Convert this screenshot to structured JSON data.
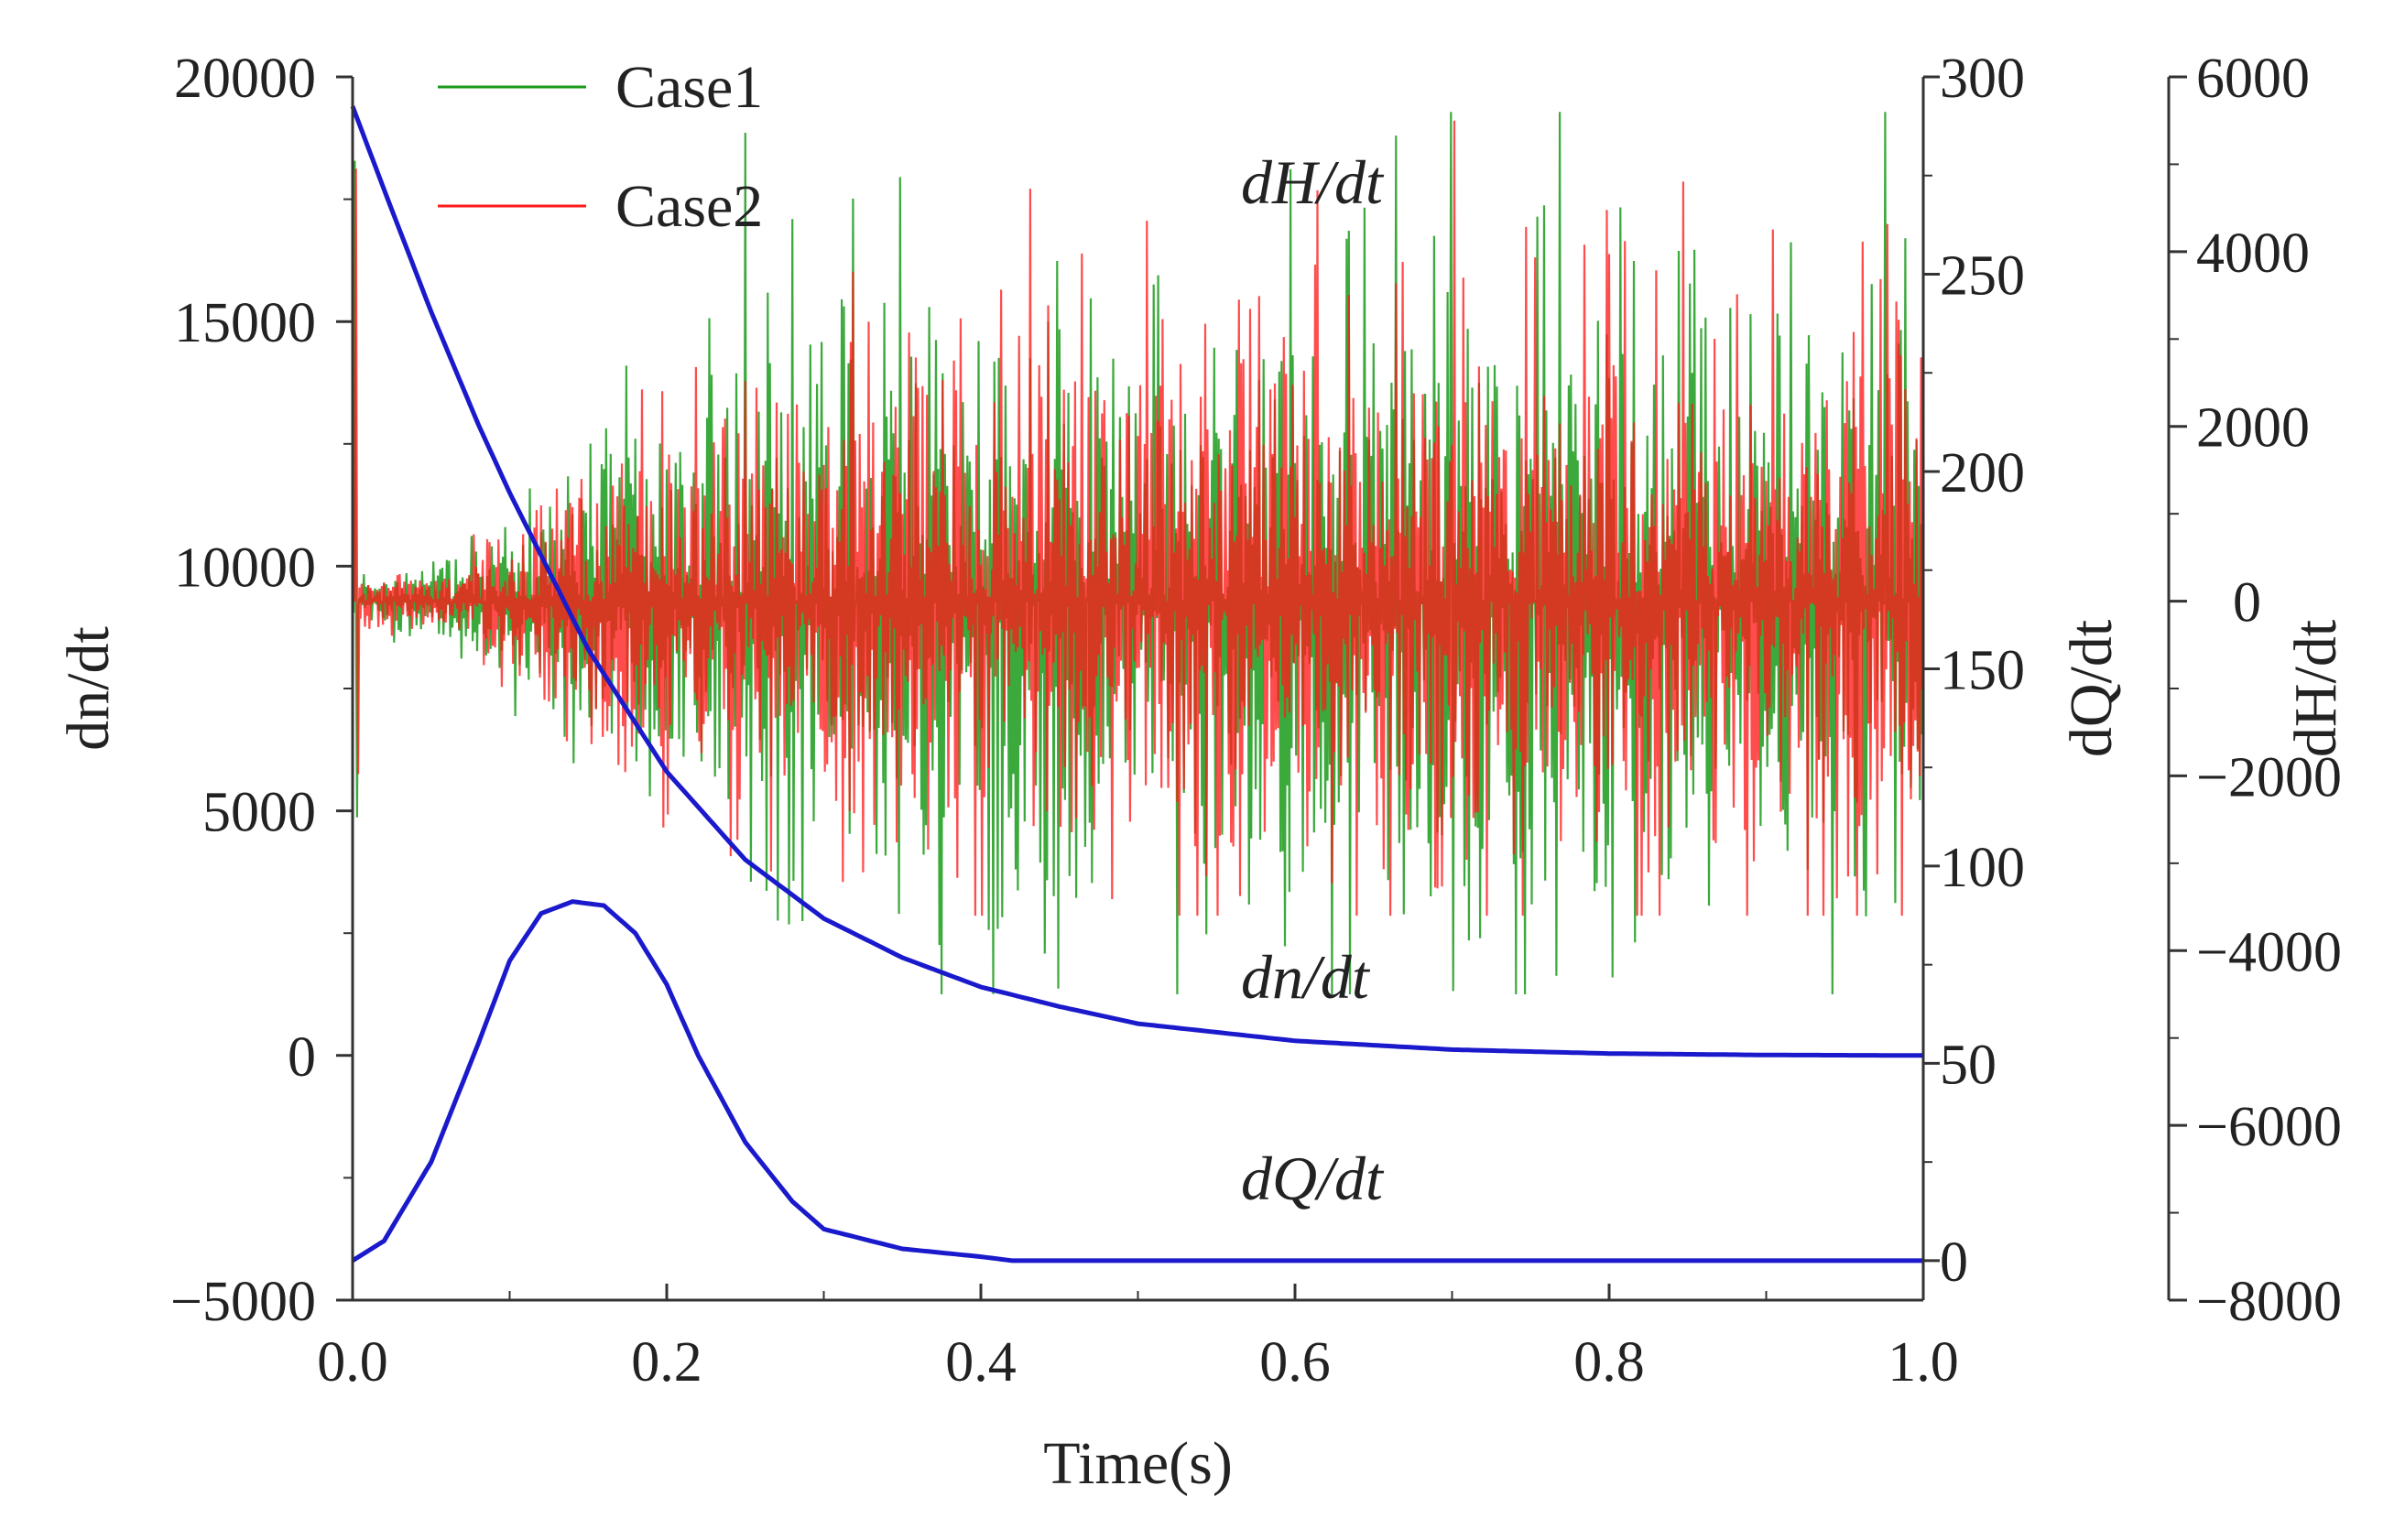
{
  "chart_data": {
    "type": "line",
    "x": {
      "label": "Time(s)",
      "range": [
        0,
        1.0
      ],
      "ticks": [
        "0.0",
        "0.2",
        "0.4",
        "0.6",
        "0.8",
        "1.0"
      ]
    },
    "axes": {
      "dn_dt": {
        "label": "dn/dt",
        "side": "left",
        "range": [
          -5000,
          20000
        ],
        "ticks": [
          "-5000",
          "0",
          "5000",
          "10000",
          "15000",
          "20000"
        ]
      },
      "dQ_dt": {
        "label": "dQ/dt",
        "side": "right",
        "range": [
          -10,
          300
        ],
        "ticks": [
          "0",
          "50",
          "100",
          "150",
          "200",
          "250",
          "300"
        ]
      },
      "dH_dt": {
        "label": "dH/dt",
        "side": "far-right",
        "range": [
          -8000,
          6000
        ],
        "ticks": [
          "-8000",
          "-6000",
          "-4000",
          "-2000",
          "0",
          "2000",
          "4000",
          "6000"
        ]
      }
    },
    "series": [
      {
        "name": "dn/dt",
        "axis": "dn_dt",
        "color": "#1a1acc",
        "annotation": "dn/dt",
        "x": [
          0,
          0.02,
          0.05,
          0.08,
          0.1,
          0.15,
          0.2,
          0.25,
          0.3,
          0.35,
          0.4,
          0.45,
          0.5,
          0.6,
          0.7,
          0.8,
          0.9,
          1.0
        ],
        "values": [
          19400,
          17700,
          15200,
          12900,
          11500,
          8300,
          5800,
          4000,
          2800,
          2000,
          1400,
          1000,
          650,
          300,
          120,
          40,
          10,
          0
        ]
      },
      {
        "name": "dQ/dt",
        "axis": "dQ_dt",
        "color": "#1a1acc",
        "annotation": "dQ/dt",
        "x": [
          0,
          0.02,
          0.05,
          0.08,
          0.1,
          0.12,
          0.14,
          0.16,
          0.18,
          0.2,
          0.22,
          0.25,
          0.28,
          0.3,
          0.35,
          0.4,
          0.42,
          0.5,
          0.6,
          0.8,
          1.0
        ],
        "values": [
          0,
          5,
          25,
          55,
          76,
          88,
          91,
          90,
          83,
          70,
          52,
          30,
          15,
          8,
          3,
          1,
          0,
          0,
          0,
          0,
          0
        ]
      },
      {
        "name": "Case1",
        "axis": "dH_dt",
        "color": "#1a9a1a",
        "annotation": "dH/dt",
        "kind": "oscillation",
        "x": [
          0,
          0.05,
          0.1,
          0.15,
          0.2,
          0.3,
          0.4,
          0.5,
          0.6,
          0.7,
          0.8,
          0.9,
          1.0
        ],
        "amplitude": [
          250,
          400,
          900,
          1700,
          2600,
          3000,
          3100,
          3200,
          3400,
          3400,
          3500,
          3500,
          3500
        ],
        "center": 0,
        "peak_max": 5600,
        "peak_min": -4500
      },
      {
        "name": "Case2",
        "axis": "dH_dt",
        "color": "#ff1a1a",
        "annotation": "",
        "kind": "oscillation",
        "x": [
          0,
          0.05,
          0.1,
          0.15,
          0.2,
          0.3,
          0.4,
          0.5,
          0.6,
          0.7,
          0.8,
          0.9,
          1.0
        ],
        "amplitude": [
          200,
          350,
          800,
          1500,
          2200,
          2600,
          2700,
          2800,
          2900,
          3000,
          3000,
          3000,
          3000
        ],
        "center": 0,
        "peak_max": 5500,
        "peak_min": -3600
      }
    ],
    "legend": [
      {
        "name": "Case1",
        "color": "#1a9a1a"
      },
      {
        "name": "Case2",
        "color": "#ff1a1a"
      }
    ],
    "legend_position": "top-left",
    "grid": false
  }
}
